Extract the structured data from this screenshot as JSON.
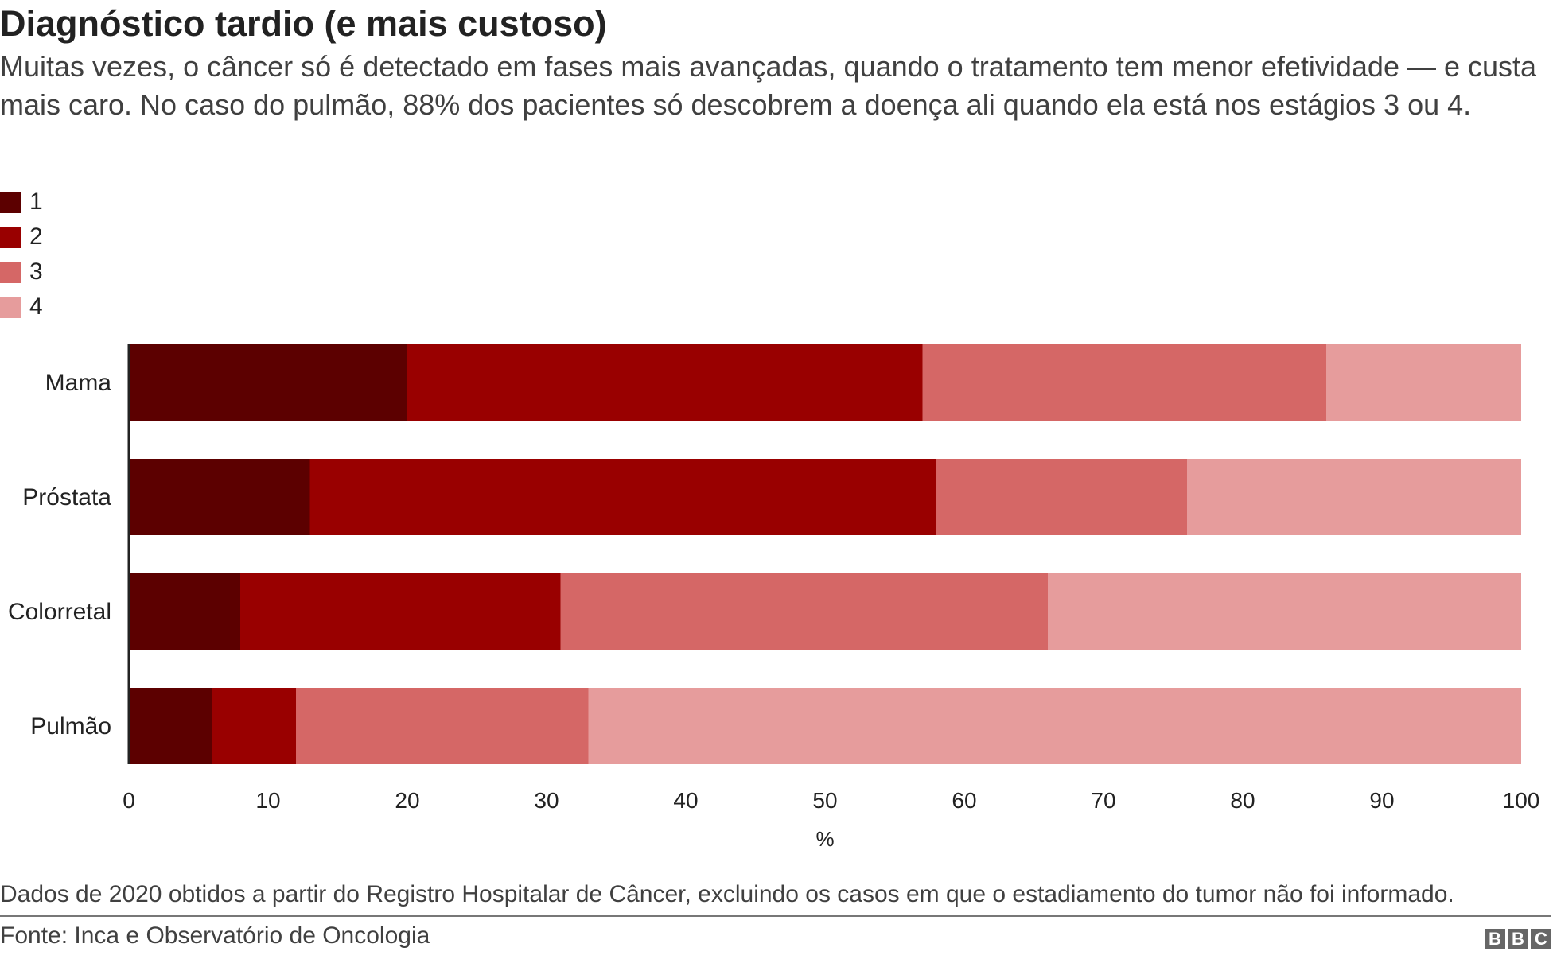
{
  "header": {
    "title": "Diagnóstico tardio (e mais custoso)",
    "subtitle": "Muitas vezes, o câncer só é detectado em fases mais avançadas, quando o tratamento tem menor efetividade — e custa mais caro. No caso do pulmão, 88% dos pacientes só descobrem a doença ali quando ela está nos estágios 3 ou 4."
  },
  "chart_data": {
    "type": "bar",
    "orientation": "horizontal",
    "stacked": true,
    "categories": [
      "Mama",
      "Próstata",
      "Colorretal",
      "Pulmão"
    ],
    "series": [
      {
        "name": "1",
        "color": "#5c0000",
        "values": [
          20,
          13,
          8,
          6
        ]
      },
      {
        "name": "2",
        "color": "#990000",
        "values": [
          37,
          45,
          23,
          6
        ]
      },
      {
        "name": "3",
        "color": "#d56766",
        "values": [
          29,
          18,
          35,
          21
        ]
      },
      {
        "name": "4",
        "color": "#e69c9c",
        "values": [
          14,
          24,
          34,
          67
        ]
      }
    ],
    "xlabel": "%",
    "xlim": [
      0,
      100
    ],
    "xticks": [
      "0",
      "10",
      "20",
      "30",
      "40",
      "50",
      "60",
      "70",
      "80",
      "90",
      "100"
    ],
    "grid": false,
    "legend_position": "top-left"
  },
  "footer": {
    "note": "Dados de 2020 obtidos a partir do Registro Hospitalar de Câncer, excluindo os casos em que o estadiamento do tumor não foi informado.",
    "source": "Fonte: Inca e Observatório de Oncologia",
    "logo": [
      "B",
      "B",
      "C"
    ]
  }
}
